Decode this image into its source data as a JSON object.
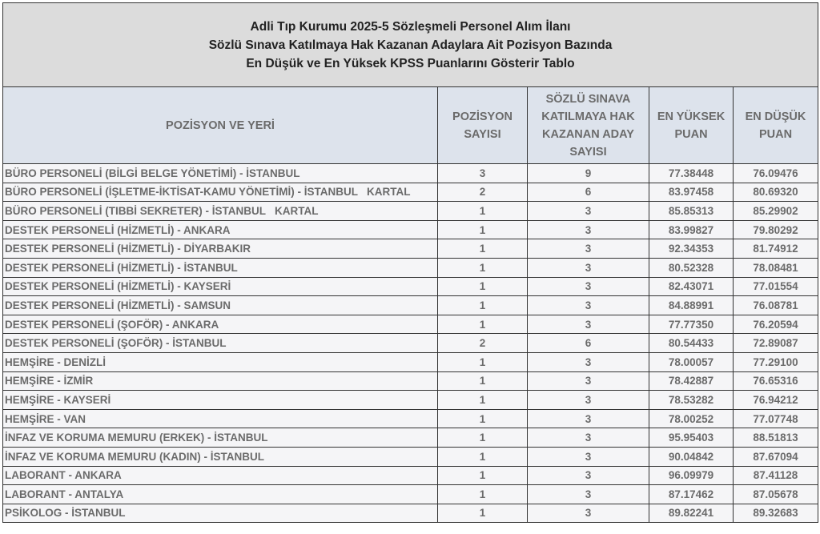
{
  "title_lines": [
    "Adli Tıp Kurumu 2025-5 Sözleşmeli Personel Alım İlanı",
    "Sözlü Sınava Katılmaya Hak Kazanan Adaylara Ait Pozisyon Bazında",
    "En Düşük ve En Yüksek KPSS Puanlarını Gösterir Tablo"
  ],
  "headers": [
    "POZİSYON VE YERİ",
    "POZİSYON SAYISI",
    "SÖZLÜ SINAVA KATILMAYA HAK KAZANAN ADAY SAYISI",
    "EN YÜKSEK PUAN",
    "EN DÜŞÜK PUAN"
  ],
  "rows": [
    [
      "BÜRO PERSONELİ (BİLGİ BELGE YÖNETİMİ) - İSTANBUL",
      "3",
      "9",
      "77.38448",
      "76.09476"
    ],
    [
      "BÜRO PERSONELİ (İŞLETME-İKTİSAT-KAMU YÖNETİMİ) - İSTANBUL   KARTAL",
      "2",
      "6",
      "83.97458",
      "80.69320"
    ],
    [
      "BÜRO PERSONELİ (TIBBİ SEKRETER) - İSTANBUL   KARTAL",
      "1",
      "3",
      "85.85313",
      "85.29902"
    ],
    [
      "DESTEK PERSONELİ (HİZMETLİ) - ANKARA",
      "1",
      "3",
      "83.99827",
      "79.80292"
    ],
    [
      "DESTEK PERSONELİ (HİZMETLİ) - DİYARBAKIR",
      "1",
      "3",
      "92.34353",
      "81.74912"
    ],
    [
      "DESTEK PERSONELİ (HİZMETLİ) - İSTANBUL",
      "1",
      "3",
      "80.52328",
      "78.08481"
    ],
    [
      "DESTEK PERSONELİ (HİZMETLİ) - KAYSERİ",
      "1",
      "3",
      "82.43071",
      "77.01554"
    ],
    [
      "DESTEK PERSONELİ (HİZMETLİ) - SAMSUN",
      "1",
      "3",
      "84.88991",
      "76.08781"
    ],
    [
      "DESTEK PERSONELİ (ŞOFÖR) - ANKARA",
      "1",
      "3",
      "77.77350",
      "76.20594"
    ],
    [
      "DESTEK PERSONELİ (ŞOFÖR) - İSTANBUL",
      "2",
      "6",
      "80.54433",
      "72.89087"
    ],
    [
      "HEMŞİRE - DENİZLİ",
      "1",
      "3",
      "78.00057",
      "77.29100"
    ],
    [
      "HEMŞİRE - İZMİR",
      "1",
      "3",
      "78.42887",
      "76.65316"
    ],
    [
      "HEMŞİRE - KAYSERİ",
      "1",
      "3",
      "78.53282",
      "76.94212"
    ],
    [
      "HEMŞİRE - VAN",
      "1",
      "3",
      "78.00252",
      "77.07748"
    ],
    [
      "İNFAZ VE KORUMA MEMURU (ERKEK) - İSTANBUL",
      "1",
      "3",
      "95.95403",
      "88.51813"
    ],
    [
      "İNFAZ VE KORUMA MEMURU (KADIN) - İSTANBUL",
      "1",
      "3",
      "90.04842",
      "87.67094"
    ],
    [
      "LABORANT - ANKARA",
      "1",
      "3",
      "96.09979",
      "87.41128"
    ],
    [
      "LABORANT - ANTALYA",
      "1",
      "3",
      "87.17462",
      "87.05678"
    ],
    [
      "PSİKOLOG - İSTANBUL",
      "1",
      "3",
      "89.82241",
      "89.32683"
    ]
  ]
}
